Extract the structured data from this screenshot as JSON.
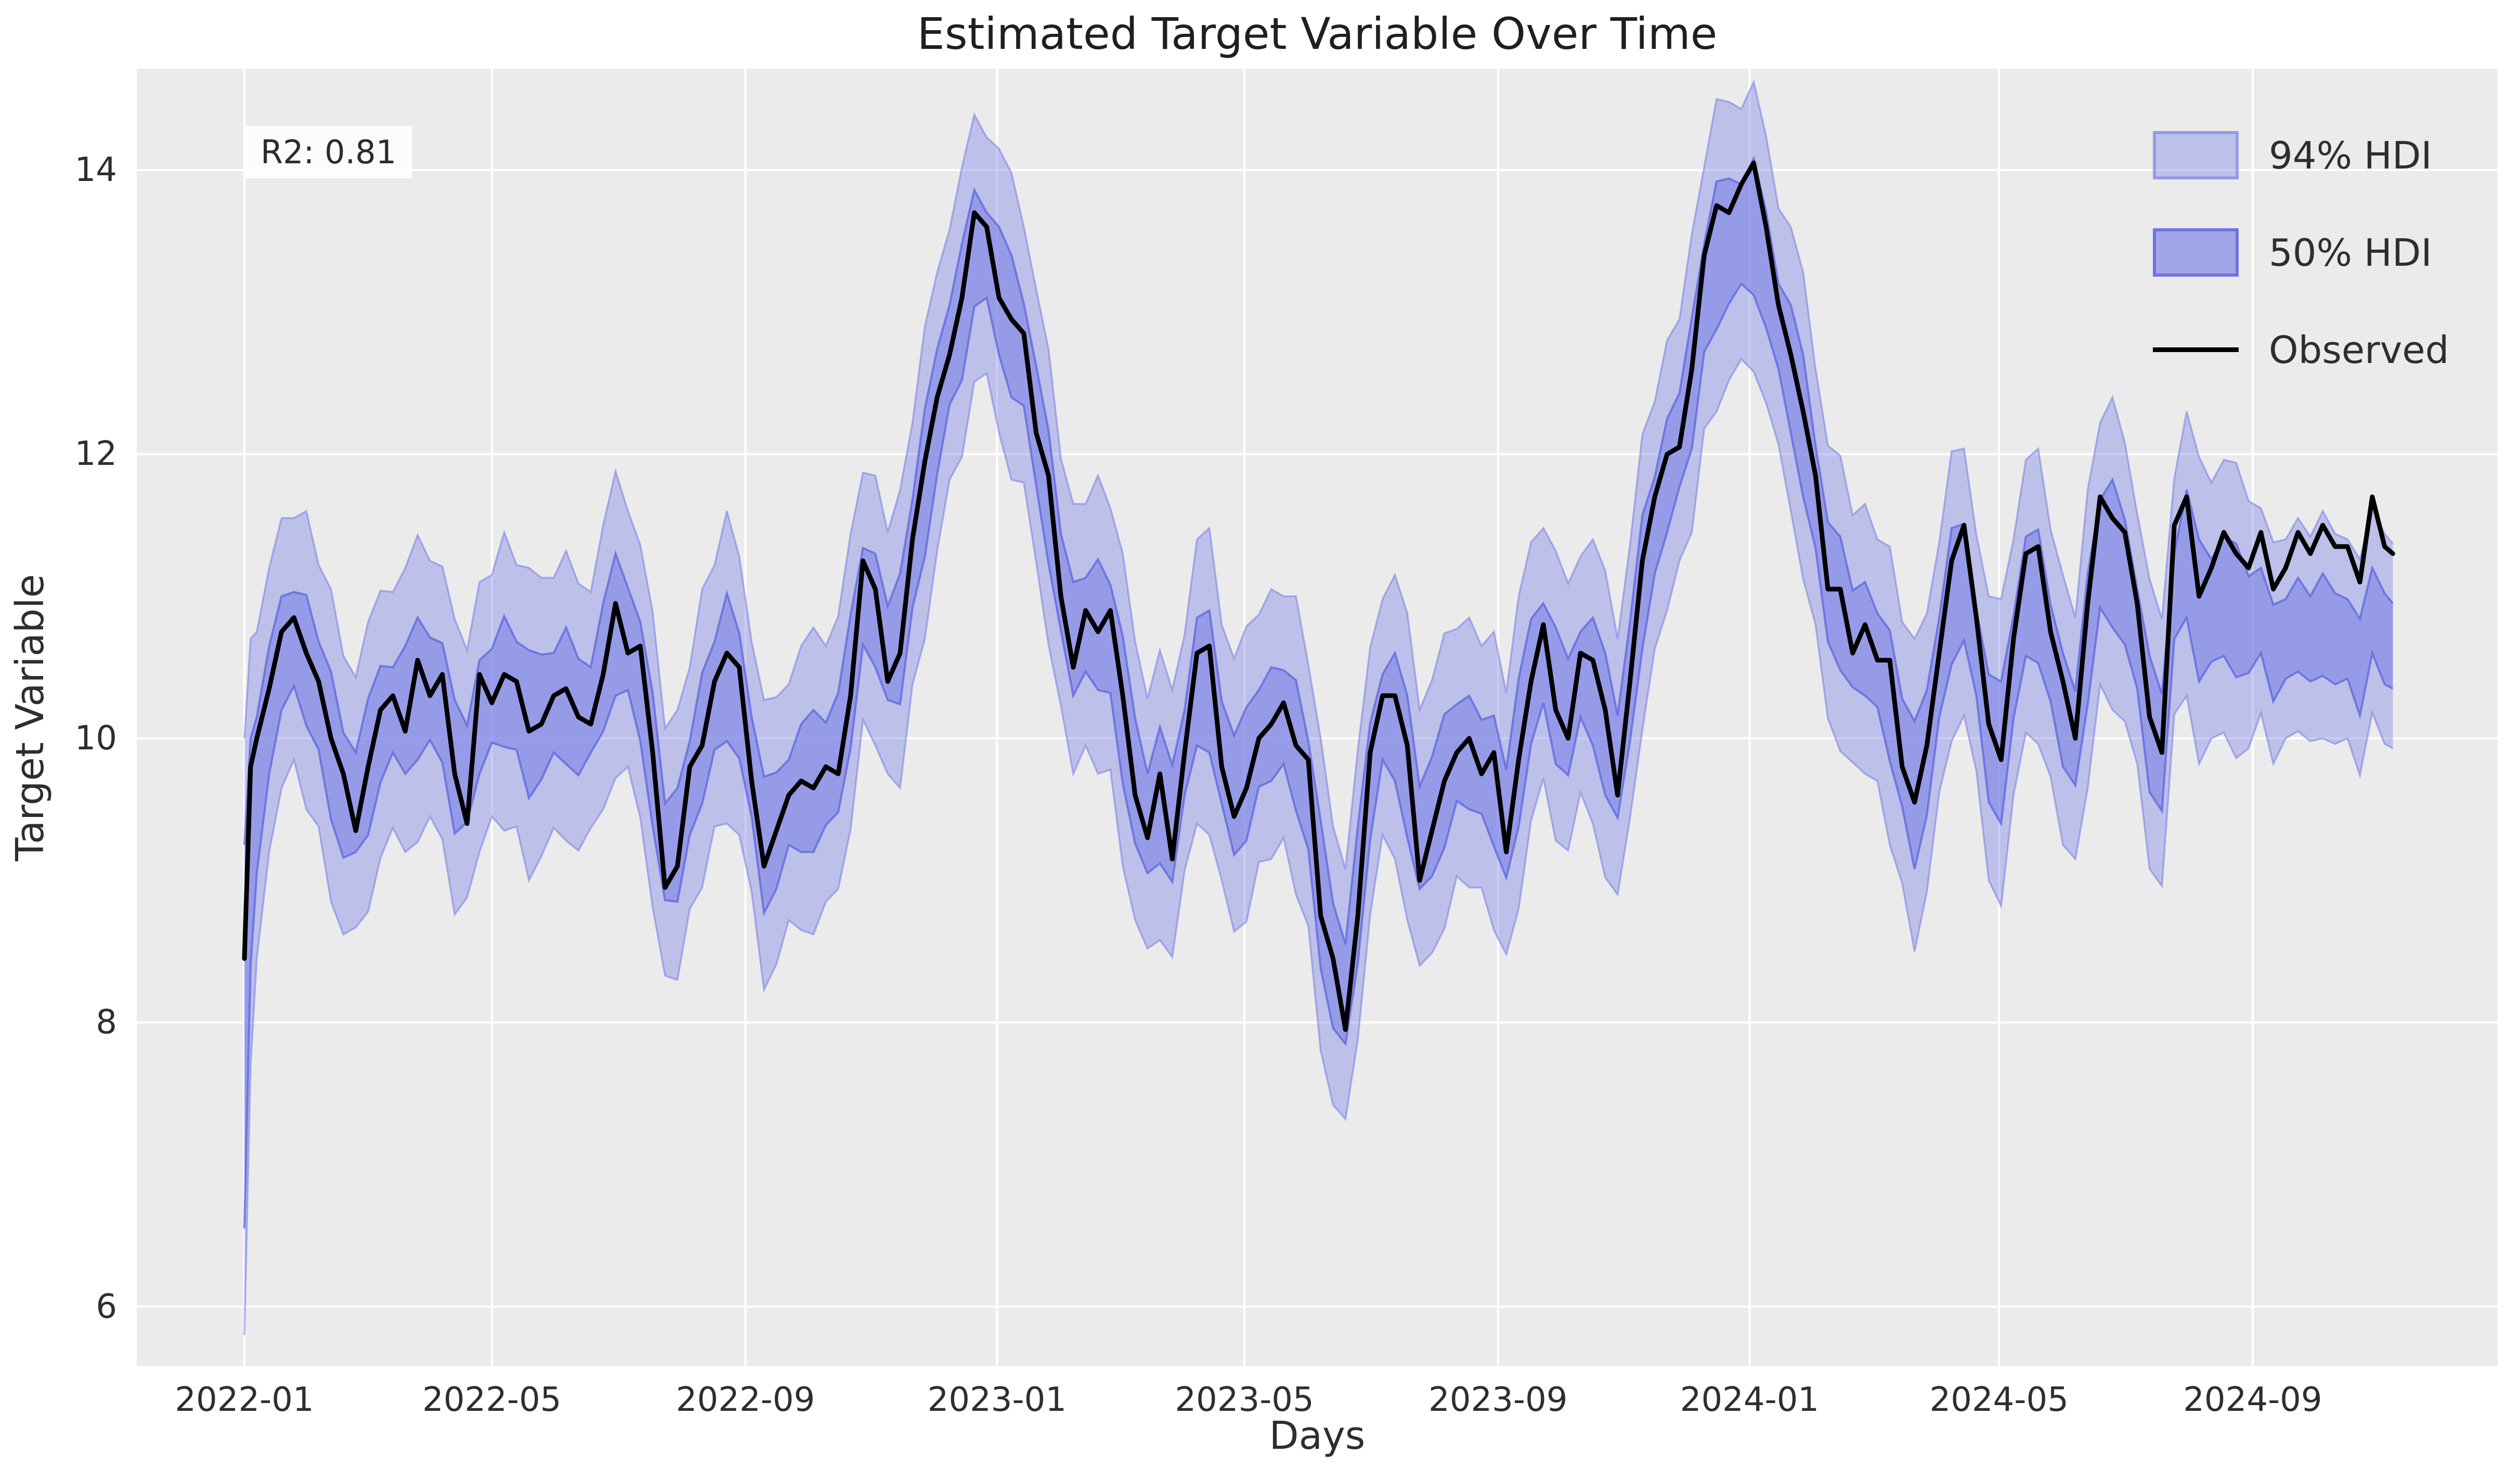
{
  "figure": {
    "title": "Estimated Target Variable Over Time",
    "xlabel": "Days",
    "ylabel": "Target Variable",
    "annotation": "R2: 0.81"
  },
  "legend": {
    "items": [
      {
        "label": "94% HDI",
        "type": "patch"
      },
      {
        "label": "50% HDI",
        "type": "patch"
      },
      {
        "label": "Observed",
        "type": "line"
      }
    ]
  },
  "colors": {
    "plot_bg": "#ebebeb",
    "grid": "#ffffff",
    "hdi94_fill": "rgba(116,123,229,0.38)",
    "hdi94_edge": "rgba(116,123,229,0.55)",
    "hdi50_fill": "rgba(116,123,229,0.55)",
    "hdi50_edge": "rgba(96,104,224,0.8)",
    "observed": "#000000",
    "text": "#2e2e2e",
    "annotation_bg": "rgba(255,255,255,0.85)"
  },
  "chart_data": {
    "type": "line",
    "title": "Estimated Target Variable Over Time",
    "xlabel": "Days",
    "ylabel": "Target Variable",
    "annotation": {
      "text": "R2: 0.81",
      "r2": 0.81
    },
    "legend_position": "upper right",
    "grid": true,
    "x_start_date": "2022-01-01",
    "x_ticks": [
      {
        "label": "2022-01",
        "day": 0
      },
      {
        "label": "2022-05",
        "day": 120
      },
      {
        "label": "2022-09",
        "day": 243
      },
      {
        "label": "2023-01",
        "day": 365
      },
      {
        "label": "2023-05",
        "day": 485
      },
      {
        "label": "2023-09",
        "day": 608
      },
      {
        "label": "2024-01",
        "day": 730
      },
      {
        "label": "2024-05",
        "day": 851
      },
      {
        "label": "2024-09",
        "day": 974
      }
    ],
    "y_ticks": [
      6,
      8,
      10,
      12,
      14
    ],
    "ylim": [
      5.58,
      14.72
    ],
    "xlim_days": [
      -52,
      1092
    ],
    "days": [
      0,
      3,
      6,
      12,
      18,
      24,
      30,
      36,
      42,
      48,
      54,
      60,
      66,
      72,
      78,
      84,
      90,
      96,
      102,
      108,
      114,
      120,
      126,
      132,
      138,
      144,
      150,
      156,
      162,
      168,
      174,
      180,
      186,
      192,
      198,
      204,
      210,
      216,
      222,
      228,
      234,
      240,
      246,
      252,
      258,
      264,
      270,
      276,
      282,
      288,
      294,
      300,
      306,
      312,
      318,
      324,
      330,
      336,
      342,
      348,
      354,
      360,
      366,
      372,
      378,
      384,
      390,
      396,
      402,
      408,
      414,
      420,
      426,
      432,
      438,
      444,
      450,
      456,
      462,
      468,
      474,
      480,
      486,
      492,
      498,
      504,
      510,
      516,
      522,
      528,
      534,
      540,
      546,
      552,
      558,
      564,
      570,
      576,
      582,
      588,
      594,
      600,
      606,
      612,
      618,
      624,
      630,
      636,
      642,
      648,
      654,
      660,
      666,
      672,
      678,
      684,
      690,
      696,
      702,
      708,
      714,
      720,
      726,
      732,
      738,
      744,
      750,
      756,
      762,
      768,
      774,
      780,
      786,
      792,
      798,
      804,
      810,
      816,
      822,
      828,
      834,
      840,
      846,
      852,
      858,
      864,
      870,
      876,
      882,
      888,
      894,
      900,
      906,
      912,
      918,
      924,
      930,
      936,
      942,
      948,
      954,
      960,
      966,
      972,
      978,
      984,
      990,
      996,
      1002,
      1008,
      1014,
      1020,
      1026,
      1032,
      1038,
      1042
    ],
    "series": [
      {
        "name": "Observed",
        "values": [
          8.45,
          9.8,
          10.0,
          10.35,
          10.75,
          10.85,
          10.6,
          10.4,
          10.0,
          9.75,
          9.35,
          9.8,
          10.2,
          10.3,
          10.05,
          10.55,
          10.3,
          10.45,
          9.75,
          9.4,
          10.45,
          10.25,
          10.45,
          10.4,
          10.05,
          10.1,
          10.3,
          10.35,
          10.15,
          10.1,
          10.45,
          10.95,
          10.6,
          10.65,
          9.9,
          8.95,
          9.1,
          9.8,
          9.95,
          10.4,
          10.6,
          10.5,
          9.7,
          9.1,
          9.35,
          9.6,
          9.7,
          9.65,
          9.8,
          9.75,
          10.3,
          11.25,
          11.05,
          10.4,
          10.6,
          11.4,
          11.95,
          12.4,
          12.7,
          13.1,
          13.7,
          13.6,
          13.1,
          12.95,
          12.85,
          12.15,
          11.85,
          11.0,
          10.5,
          10.9,
          10.75,
          10.9,
          10.3,
          9.6,
          9.3,
          9.75,
          9.15,
          9.9,
          10.6,
          10.65,
          9.8,
          9.45,
          9.65,
          10.0,
          10.1,
          10.25,
          9.95,
          9.85,
          8.75,
          8.45,
          7.95,
          8.75,
          9.9,
          10.3,
          10.3,
          9.95,
          9.0,
          9.35,
          9.7,
          9.9,
          10.0,
          9.75,
          9.9,
          9.2,
          9.85,
          10.4,
          10.8,
          10.2,
          10.0,
          10.6,
          10.55,
          10.2,
          9.6,
          10.4,
          11.25,
          11.7,
          12.0,
          12.05,
          12.6,
          13.4,
          13.75,
          13.7,
          13.9,
          14.05,
          13.6,
          13.05,
          12.7,
          12.3,
          11.85,
          11.05,
          11.05,
          10.6,
          10.8,
          10.55,
          10.55,
          9.8,
          9.55,
          9.95,
          10.6,
          11.25,
          11.5,
          10.85,
          10.1,
          9.85,
          10.7,
          11.3,
          11.35,
          10.75,
          10.4,
          10.0,
          10.95,
          11.7,
          11.55,
          11.45,
          10.95,
          10.15,
          9.9,
          11.5,
          11.7,
          11.0,
          11.2,
          11.45,
          11.3,
          11.2,
          11.45,
          11.05,
          11.2,
          11.45,
          11.3,
          11.5,
          11.35,
          11.35,
          11.1,
          11.7,
          11.35,
          11.3
        ]
      },
      {
        "name": "band_center",
        "values": [
          7.9,
          9.2,
          9.6,
          10.2,
          10.6,
          10.7,
          10.55,
          10.3,
          9.95,
          9.6,
          9.55,
          9.8,
          10.1,
          10.2,
          10.2,
          10.35,
          10.35,
          10.25,
          9.8,
          9.75,
          10.15,
          10.3,
          10.4,
          10.3,
          10.1,
          10.15,
          10.25,
          10.3,
          10.15,
          10.2,
          10.5,
          10.8,
          10.7,
          10.4,
          9.85,
          9.2,
          9.25,
          9.65,
          10.0,
          10.3,
          10.5,
          10.3,
          9.8,
          9.25,
          9.35,
          9.55,
          9.65,
          9.7,
          9.75,
          9.9,
          10.4,
          11.0,
          10.9,
          10.6,
          10.7,
          11.3,
          11.8,
          12.3,
          12.7,
          13.0,
          13.45,
          13.4,
          13.15,
          12.9,
          12.7,
          12.2,
          11.7,
          11.1,
          10.7,
          10.8,
          10.8,
          10.7,
          10.2,
          9.7,
          9.4,
          9.6,
          9.4,
          9.9,
          10.4,
          10.4,
          9.9,
          9.6,
          9.75,
          10.0,
          10.1,
          10.15,
          9.95,
          9.6,
          8.9,
          8.4,
          8.2,
          8.9,
          9.7,
          10.15,
          10.15,
          9.8,
          9.3,
          9.45,
          9.7,
          9.9,
          9.9,
          9.8,
          9.7,
          9.4,
          9.9,
          10.4,
          10.6,
          10.3,
          10.15,
          10.45,
          10.4,
          10.1,
          9.8,
          10.4,
          11.1,
          11.5,
          11.85,
          12.1,
          12.5,
          13.1,
          13.4,
          13.5,
          13.55,
          13.6,
          13.3,
          12.9,
          12.6,
          12.2,
          11.7,
          11.1,
          10.95,
          10.7,
          10.7,
          10.55,
          10.3,
          9.9,
          9.6,
          9.9,
          10.5,
          11.0,
          11.1,
          10.6,
          10.0,
          9.9,
          10.5,
          11.0,
          11.0,
          10.6,
          10.2,
          10.0,
          10.7,
          11.3,
          11.3,
          11.1,
          10.7,
          10.1,
          9.9,
          11.0,
          11.3,
          10.9,
          10.9,
          11.0,
          10.9,
          10.8,
          10.9,
          10.6,
          10.7,
          10.8,
          10.7,
          10.8,
          10.7,
          10.7,
          10.5,
          10.9,
          10.7,
          10.65
        ]
      },
      {
        "name": "hdi50_halfwidth",
        "values": [
          1.35,
          0.8,
          0.55,
          0.45,
          0.4,
          0.33,
          0.46,
          0.38,
          0.52,
          0.44,
          0.35,
          0.48,
          0.41,
          0.3,
          0.45,
          0.5,
          0.36,
          0.42,
          0.47,
          0.34,
          0.4,
          0.33,
          0.46,
          0.38,
          0.52,
          0.44,
          0.35,
          0.48,
          0.41,
          0.3,
          0.45,
          0.5,
          0.36,
          0.42,
          0.47,
          0.34,
          0.4,
          0.33,
          0.46,
          0.38,
          0.52,
          0.44,
          0.35,
          0.48,
          0.41,
          0.3,
          0.45,
          0.5,
          0.36,
          0.42,
          0.47,
          0.34,
          0.4,
          0.33,
          0.46,
          0.38,
          0.52,
          0.44,
          0.35,
          0.48,
          0.41,
          0.3,
          0.45,
          0.5,
          0.36,
          0.42,
          0.47,
          0.34,
          0.4,
          0.33,
          0.46,
          0.38,
          0.52,
          0.44,
          0.35,
          0.48,
          0.41,
          0.3,
          0.45,
          0.5,
          0.36,
          0.42,
          0.47,
          0.34,
          0.4,
          0.33,
          0.46,
          0.38,
          0.52,
          0.44,
          0.35,
          0.48,
          0.41,
          0.3,
          0.45,
          0.5,
          0.36,
          0.42,
          0.47,
          0.34,
          0.4,
          0.33,
          0.46,
          0.38,
          0.52,
          0.44,
          0.35,
          0.48,
          0.41,
          0.3,
          0.45,
          0.5,
          0.36,
          0.42,
          0.47,
          0.34,
          0.4,
          0.33,
          0.46,
          0.38,
          0.52,
          0.44,
          0.35,
          0.48,
          0.41,
          0.3,
          0.45,
          0.5,
          0.36,
          0.42,
          0.47,
          0.34,
          0.4,
          0.33,
          0.46,
          0.38,
          0.52,
          0.44,
          0.35,
          0.48,
          0.41,
          0.3,
          0.45,
          0.5,
          0.36,
          0.42,
          0.47,
          0.34,
          0.4,
          0.33,
          0.46,
          0.38,
          0.52,
          0.44,
          0.35,
          0.48,
          0.41,
          0.3,
          0.45,
          0.5,
          0.36,
          0.42,
          0.47,
          0.34,
          0.3,
          0.34,
          0.28,
          0.33,
          0.3,
          0.36,
          0.32,
          0.28,
          0.34,
          0.3,
          0.32,
          0.3
        ]
      },
      {
        "name": "hdi94_halfwidth",
        "values": [
          2.1,
          1.5,
          1.15,
          1.0,
          0.95,
          0.85,
          1.05,
          0.92,
          1.1,
          0.98,
          0.88,
          1.02,
          0.94,
          0.83,
          1.0,
          1.08,
          0.9,
          0.96,
          1.04,
          0.87,
          0.95,
          0.85,
          1.05,
          0.92,
          1.1,
          0.98,
          0.88,
          1.02,
          0.94,
          0.83,
          1.0,
          1.08,
          0.9,
          0.96,
          1.04,
          0.87,
          0.95,
          0.85,
          1.05,
          0.92,
          1.1,
          0.98,
          0.88,
          1.02,
          0.94,
          0.83,
          1.0,
          1.08,
          0.9,
          0.96,
          1.04,
          0.87,
          0.95,
          0.85,
          1.05,
          0.92,
          1.1,
          0.98,
          0.88,
          1.02,
          0.94,
          0.83,
          1.0,
          1.08,
          0.9,
          0.96,
          1.04,
          0.87,
          0.95,
          0.85,
          1.05,
          0.92,
          1.1,
          0.98,
          0.88,
          1.02,
          0.94,
          0.83,
          1.0,
          1.08,
          0.9,
          0.96,
          1.04,
          0.87,
          0.95,
          0.85,
          1.05,
          0.92,
          1.1,
          0.98,
          0.88,
          1.02,
          0.94,
          0.83,
          1.0,
          1.08,
          0.9,
          0.96,
          1.04,
          0.87,
          0.95,
          0.85,
          1.05,
          0.92,
          1.1,
          0.98,
          0.88,
          1.02,
          0.94,
          0.83,
          1.0,
          1.08,
          0.9,
          0.96,
          1.04,
          0.87,
          0.95,
          0.85,
          1.05,
          0.92,
          1.1,
          0.98,
          0.88,
          1.02,
          0.94,
          0.83,
          1.0,
          1.08,
          0.9,
          0.96,
          1.04,
          0.87,
          0.95,
          0.85,
          1.05,
          0.92,
          1.1,
          0.98,
          0.88,
          1.02,
          0.94,
          0.83,
          1.0,
          1.08,
          0.9,
          0.96,
          1.04,
          0.87,
          0.95,
          0.85,
          1.05,
          0.92,
          1.1,
          0.98,
          0.88,
          1.02,
          0.94,
          0.83,
          1.0,
          1.08,
          0.9,
          0.96,
          1.04,
          0.87,
          0.72,
          0.78,
          0.7,
          0.75,
          0.72,
          0.8,
          0.74,
          0.7,
          0.76,
          0.72,
          0.74,
          0.72
        ]
      }
    ]
  }
}
